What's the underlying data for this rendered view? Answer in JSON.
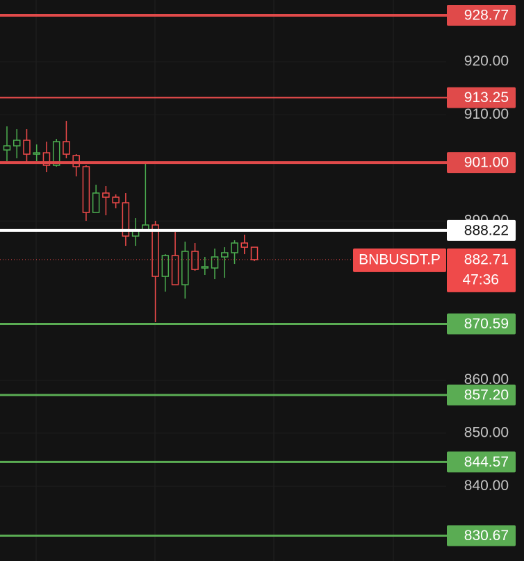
{
  "chart_data": {
    "type": "candlestick",
    "symbol": "BNBUSDT.P",
    "countdown": "47:36",
    "last_price": 882.71,
    "up_color": "#4caf50",
    "down_color": "#ef4a4a",
    "ylim": [
      825.9,
      931.65
    ],
    "yticks": [
      {
        "value": 840,
        "label": "840.00"
      },
      {
        "value": 850,
        "label": "850.00"
      },
      {
        "value": 860,
        "label": "860.00"
      },
      {
        "value": 890,
        "label": "890.00"
      },
      {
        "value": 910,
        "label": "910.00"
      },
      {
        "value": 920,
        "label": "920.00"
      }
    ],
    "grid": true,
    "open": [
      903.38,
      904.16,
      905.21,
      902.59,
      902.85,
      900.5,
      904.95,
      902.33,
      900.24,
      891.6,
      895.26,
      894.48,
      893.43,
      887.15,
      888.19,
      889.24,
      879.55,
      883.48,
      877.98,
      884.27,
      881.13,
      881.13,
      883.22,
      884.01,
      885.84,
      885.05
    ],
    "high": [
      907.83,
      907.3,
      907.3,
      904.42,
      904.95,
      905.47,
      908.87,
      902.59,
      900.5,
      896.83,
      896.57,
      895.0,
      895.26,
      890.55,
      901.02,
      890.03,
      883.74,
      887.93,
      886.1,
      885.84,
      883.22,
      884.79,
      885.05,
      886.36,
      887.41,
      885.05
    ],
    "low": [
      901.28,
      901.81,
      901.02,
      901.28,
      899.19,
      900.24,
      901.81,
      898.4,
      890.03,
      891.6,
      891.07,
      892.38,
      885.31,
      885.31,
      888.19,
      870.92,
      876.68,
      877.98,
      875.37,
      880.6,
      879.82,
      879.03,
      879.29,
      881.91,
      883.74,
      882.43
    ],
    "close": [
      904.16,
      905.21,
      902.59,
      902.85,
      900.5,
      904.95,
      902.59,
      900.24,
      891.6,
      895.26,
      894.48,
      893.43,
      887.15,
      888.19,
      889.24,
      879.55,
      883.48,
      877.98,
      884.27,
      880.86,
      881.39,
      883.22,
      884.01,
      885.84,
      885.05,
      882.71
    ],
    "levels": {
      "values": [
        928.77,
        913.25,
        901,
        888.22,
        870.59,
        857.2,
        844.57,
        830.67
      ],
      "value_labels": [
        "928.77",
        "913.25",
        "901.00",
        "888.22",
        "870.59",
        "857.20",
        "844.57",
        "830.67"
      ],
      "colors": [
        "#e04a4a",
        "#e04a4a",
        "#e04a4a",
        "#ffffff",
        "#5aac53",
        "#5aac53",
        "#5aac53",
        "#5aac53"
      ],
      "line_widths": [
        4,
        2,
        4,
        4,
        3,
        3,
        3,
        3
      ]
    }
  }
}
